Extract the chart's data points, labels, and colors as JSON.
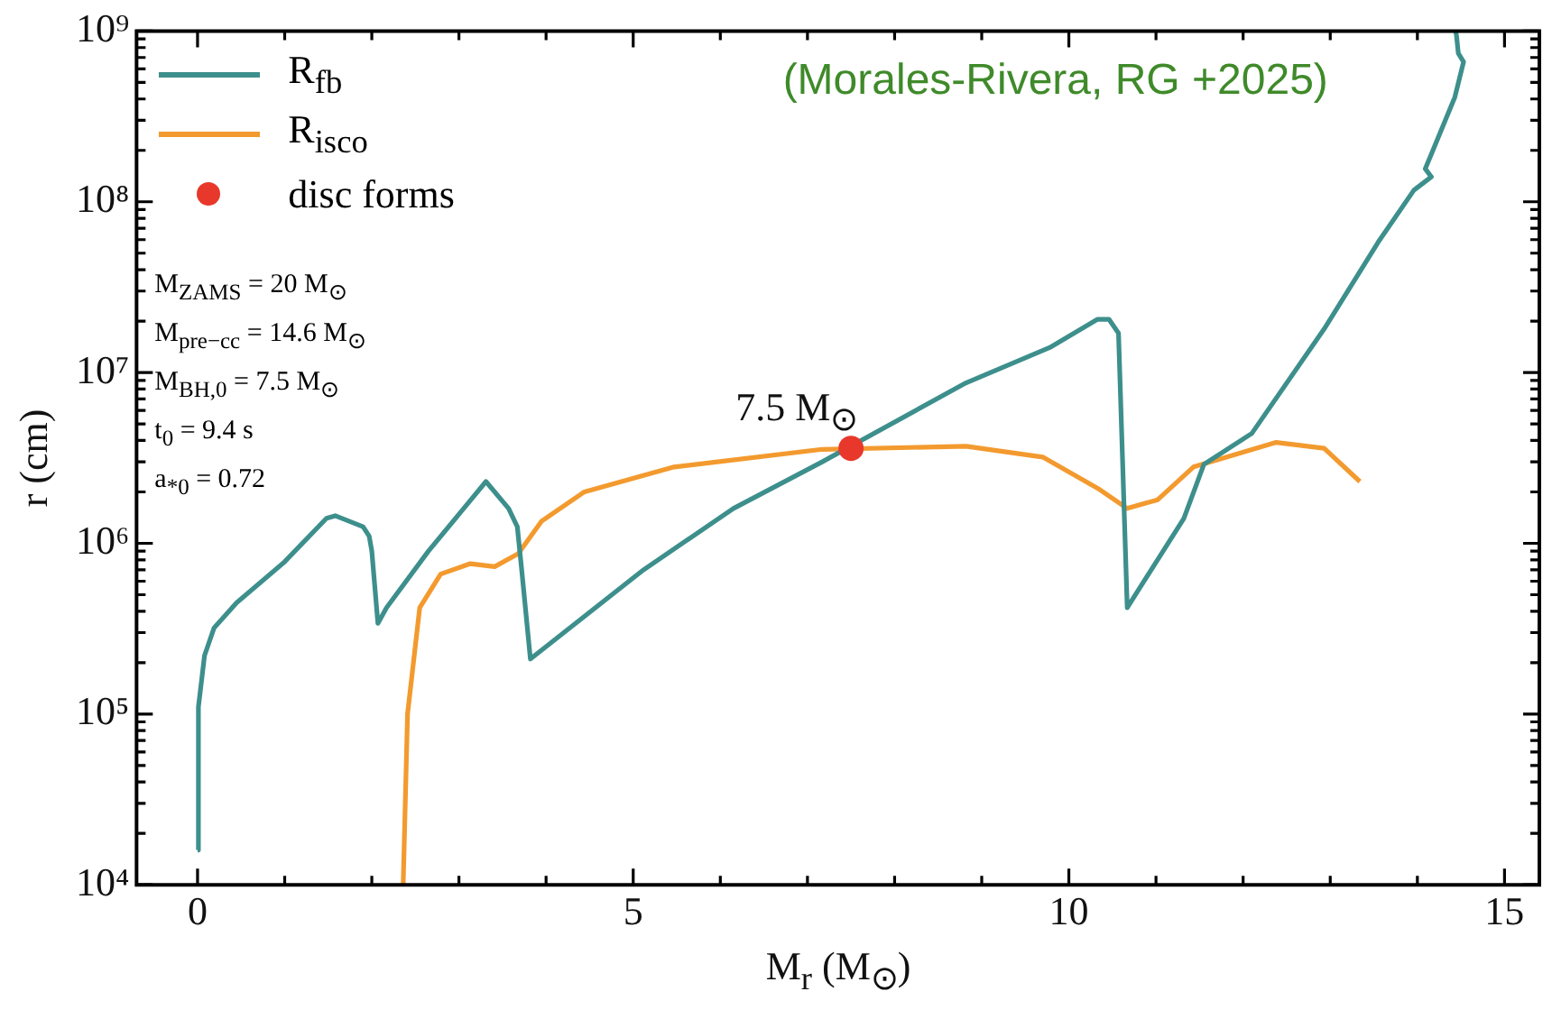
{
  "chart_data": {
    "type": "line",
    "xlabel": "M$_{r}$ (M$_{⊙}$)",
    "ylabel": "r (cm)",
    "log": "y",
    "xlim": [
      -0.7,
      15.4
    ],
    "xticks": [
      0,
      {
        "value": 1,
        "label": null
      },
      {
        "value": 2,
        "label": null
      },
      {
        "value": 3,
        "label": null
      },
      {
        "value": 4,
        "label": null
      },
      5,
      {
        "value": 6,
        "label": null
      },
      {
        "value": 7,
        "label": null
      },
      {
        "value": 8,
        "label": null
      },
      {
        "value": 9,
        "label": null
      },
      10,
      {
        "value": 11,
        "label": null
      },
      {
        "value": 12,
        "label": null
      },
      {
        "value": 13,
        "label": null
      },
      {
        "value": 14,
        "label": null
      },
      15
    ],
    "ylim": [
      10000,
      1000000000
    ],
    "yticks": [
      {
        "value": 10000,
        "label": "10⁴"
      },
      {
        "value": 20000,
        "label": null
      },
      {
        "value": 30000,
        "label": null
      },
      {
        "value": 40000,
        "label": null
      },
      {
        "value": 50000,
        "label": null
      },
      {
        "value": 60000,
        "label": null
      },
      {
        "value": 70000,
        "label": null
      },
      {
        "value": 80000,
        "label": null
      },
      {
        "value": 90000,
        "label": null
      },
      {
        "value": 100000,
        "label": "10⁵"
      },
      {
        "value": 200000,
        "label": null
      },
      {
        "value": 300000,
        "label": null
      },
      {
        "value": 400000,
        "label": null
      },
      {
        "value": 500000,
        "label": null
      },
      {
        "value": 600000,
        "label": null
      },
      {
        "value": 700000,
        "label": null
      },
      {
        "value": 800000,
        "label": null
      },
      {
        "value": 900000,
        "label": null
      },
      {
        "value": 1000000,
        "label": "10⁶"
      },
      {
        "value": 2000000,
        "label": null
      },
      {
        "value": 3000000,
        "label": null
      },
      {
        "value": 4000000,
        "label": null
      },
      {
        "value": 5000000,
        "label": null
      },
      {
        "value": 6000000,
        "label": null
      },
      {
        "value": 7000000,
        "label": null
      },
      {
        "value": 8000000,
        "label": null
      },
      {
        "value": 9000000,
        "label": null
      },
      {
        "value": 10000000,
        "label": "10⁷"
      },
      {
        "value": 20000000,
        "label": null
      },
      {
        "value": 30000000,
        "label": null
      },
      {
        "value": 40000000,
        "label": null
      },
      {
        "value": 50000000,
        "label": null
      },
      {
        "value": 60000000,
        "label": null
      },
      {
        "value": 70000000,
        "label": null
      },
      {
        "value": 80000000,
        "label": null
      },
      {
        "value": 90000000,
        "label": null
      },
      {
        "value": 100000000,
        "label": "10⁸"
      },
      {
        "value": 200000000,
        "label": null
      },
      {
        "value": 300000000,
        "label": null
      },
      {
        "value": 400000000,
        "label": null
      },
      {
        "value": 500000000,
        "label": null
      },
      {
        "value": 600000000,
        "label": null
      },
      {
        "value": 700000000,
        "label": null
      },
      {
        "value": 800000000,
        "label": null
      },
      {
        "value": 900000000,
        "label": null
      },
      {
        "value": 1000000000,
        "label": "10⁹"
      }
    ],
    "legend": "top left",
    "marker": "none",
    "line_style": "solid",
    "series": [
      {
        "name": "R$_{fb}$",
        "color": "#3d8f8c",
        "x": [
          0,
          0.01,
          0.08,
          0.19,
          0.45,
          1.0,
          1.48,
          1.58,
          1.9,
          1.97,
          2.0,
          2.07,
          2.17,
          2.65,
          3.31,
          3.57,
          3.67,
          3.72,
          3.82,
          5.12,
          6.15,
          7.17,
          8.82,
          9.78,
          10.33,
          10.46,
          10.57,
          10.67,
          11.32,
          11.55,
          12.1,
          12.93,
          13.55,
          13.96,
          14.16,
          14.09,
          14.16,
          14.43,
          14.53,
          14.47,
          14.45,
          14.44
        ],
        "values": [
          16000,
          110000,
          220000,
          320000,
          450000,
          780000,
          1400000,
          1450000,
          1250000,
          1100000,
          900000,
          340000,
          420000,
          900000,
          2300000,
          1600000,
          1250000,
          700000,
          210000,
          700000,
          1600000,
          3000000,
          8700000,
          14000000,
          20500000,
          20500000,
          17000000,
          420000,
          1400000,
          2900000,
          4400000,
          18000000,
          58000000,
          117000000,
          140000000,
          156000000,
          190000000,
          410000000,
          660000000,
          740000000,
          930000000,
          1000000000
        ]
      },
      {
        "name": "R$_{isco}$",
        "color": "#f39a2f",
        "x": [
          2.36,
          2.41,
          2.55,
          2.79,
          3.13,
          3.41,
          3.68,
          3.95,
          4.44,
          5.47,
          7.17,
          8.82,
          9.7,
          10.33,
          10.67,
          11.02,
          11.43,
          12.38,
          12.93,
          13.34
        ],
        "values": [
          10000,
          100000,
          420000,
          660000,
          760000,
          730000,
          870000,
          1350000,
          2000000,
          2800000,
          3550000,
          3700000,
          3200000,
          2100000,
          1600000,
          1800000,
          2800000,
          3900000,
          3600000,
          2300000
        ]
      },
      {
        "name": "disc forms",
        "type": "scatter",
        "marker": "circle",
        "color": "#e8382b",
        "x": [
          7.5
        ],
        "values": [
          3600000
        ]
      }
    ],
    "annotations": [
      "(Morales-Rivera, RG +2025)",
      "M$_{ZAMS}$ = 20 M$_{⊙}$",
      "M$_{pre−cc}$ = 14.6 M$_{⊙}$",
      "M$_{BH,0}$ = 7.5 M$_{⊙}$",
      "t$_{0}$ = 9.4 s",
      "a$_{*0}$ = 0.72",
      {
        "text": "7.5 M$_{⊙}$",
        "x": 7.5,
        "y": 3600000
      }
    ]
  }
}
